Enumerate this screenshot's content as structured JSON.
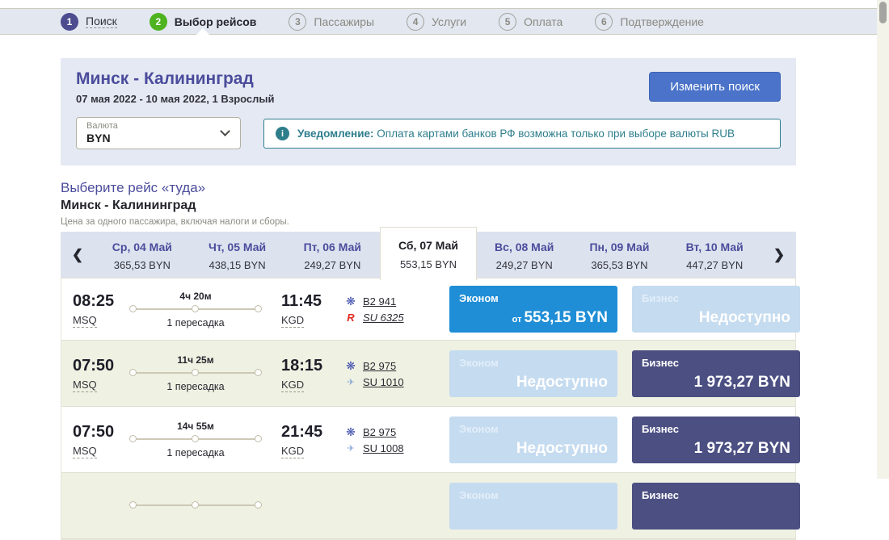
{
  "stepper": {
    "steps": [
      {
        "num": "1",
        "label": "Поиск",
        "state": "done"
      },
      {
        "num": "2",
        "label": "Выбор рейсов",
        "state": "active"
      },
      {
        "num": "3",
        "label": "Пассажиры",
        "state": "pending"
      },
      {
        "num": "4",
        "label": "Услуги",
        "state": "pending"
      },
      {
        "num": "5",
        "label": "Оплата",
        "state": "pending"
      },
      {
        "num": "6",
        "label": "Подтверждение",
        "state": "pending"
      }
    ]
  },
  "search_summary": {
    "route": "Минск - Калининград",
    "details": "07 мая 2022 - 10 мая 2022, 1 Взрослый",
    "edit_button": "Изменить поиск",
    "currency": {
      "label": "Валюта",
      "value": "BYN"
    },
    "notice": {
      "title": "Уведомление:",
      "text": "Оплата картами банков РФ возможна только при выборе валюты RUB"
    }
  },
  "selection": {
    "heading": "Выберите рейс «туда»",
    "route": "Минск - Калининград",
    "note": "Цена за одного пассажира, включая налоги и сборы."
  },
  "icons": {
    "chevron_left": "❮",
    "chevron_right": "❯",
    "info": "i",
    "belavia_logo": "❋",
    "rossiya_logo": "R",
    "aeroflot_logo": "✈"
  },
  "date_tabs": [
    {
      "date": "Ср, 04 Май",
      "price": "365,53 BYN",
      "selected": false
    },
    {
      "date": "Чт, 05 Май",
      "price": "438,15 BYN",
      "selected": false
    },
    {
      "date": "Пт, 06 Май",
      "price": "249,27 BYN",
      "selected": false
    },
    {
      "date": "Сб, 07 Май",
      "price": "553,15 BYN",
      "selected": true
    },
    {
      "date": "Вс, 08 Май",
      "price": "249,27 BYN",
      "selected": false
    },
    {
      "date": "Пн, 09 Май",
      "price": "365,53 BYN",
      "selected": false
    },
    {
      "date": "Вт, 10 Май",
      "price": "447,27 BYN",
      "selected": false
    }
  ],
  "flights": [
    {
      "dep_time": "08:25",
      "dep_code": "MSQ",
      "arr_time": "11:45",
      "arr_code": "KGD",
      "duration": "4ч 20м",
      "stops": "1 пересадка",
      "segments": [
        {
          "airline": "belavia",
          "flight": "B2 941"
        },
        {
          "airline": "rossiya",
          "flight": "SU 6325"
        }
      ],
      "economy": {
        "label": "Эконом",
        "prefix": "от",
        "value": "553,15 BYN",
        "state": "available"
      },
      "business": {
        "label": "Бизнес",
        "prefix": "",
        "value": "Недоступно",
        "state": "unavailable"
      }
    },
    {
      "dep_time": "07:50",
      "dep_code": "MSQ",
      "arr_time": "18:15",
      "arr_code": "KGD",
      "duration": "11ч 25м",
      "stops": "1 пересадка",
      "segments": [
        {
          "airline": "belavia",
          "flight": "B2 975"
        },
        {
          "airline": "aeroflot",
          "flight": "SU 1010"
        }
      ],
      "economy": {
        "label": "Эконом",
        "prefix": "",
        "value": "Недоступно",
        "state": "unavailable"
      },
      "business": {
        "label": "Бизнес",
        "prefix": "",
        "value": "1 973,27 BYN",
        "state": "available"
      }
    },
    {
      "dep_time": "07:50",
      "dep_code": "MSQ",
      "arr_time": "21:45",
      "arr_code": "KGD",
      "duration": "14ч 55м",
      "stops": "1 пересадка",
      "segments": [
        {
          "airline": "belavia",
          "flight": "B2 975"
        },
        {
          "airline": "aeroflot",
          "flight": "SU 1008"
        }
      ],
      "economy": {
        "label": "Эконом",
        "prefix": "",
        "value": "Недоступно",
        "state": "unavailable"
      },
      "business": {
        "label": "Бизнес",
        "prefix": "",
        "value": "1 973,27 BYN",
        "state": "available"
      }
    },
    {
      "dep_time": "",
      "dep_code": "",
      "arr_time": "",
      "arr_code": "",
      "duration": "",
      "stops": "",
      "segments": [],
      "economy": {
        "label": "Эконом",
        "prefix": "",
        "value": "",
        "state": "unavailable"
      },
      "business": {
        "label": "Бизнес",
        "prefix": "",
        "value": "",
        "state": "available"
      }
    }
  ],
  "colors": {
    "economy_active": "#1f8ed6",
    "business_active": "#4b4f82",
    "unavailable": "#c5dbef",
    "step_done": "#4c4c8e",
    "step_active_green": "#4eb31f",
    "heading_purple": "#4b4c9c",
    "notice_teal": "#2e7e8c",
    "edit_button_blue": "#4a73c9",
    "bar_background": "#e2e7f0",
    "card_background": "#e4e9f3",
    "strip_background": "#dce3ef",
    "row_alt_background": "#eff1e2"
  }
}
